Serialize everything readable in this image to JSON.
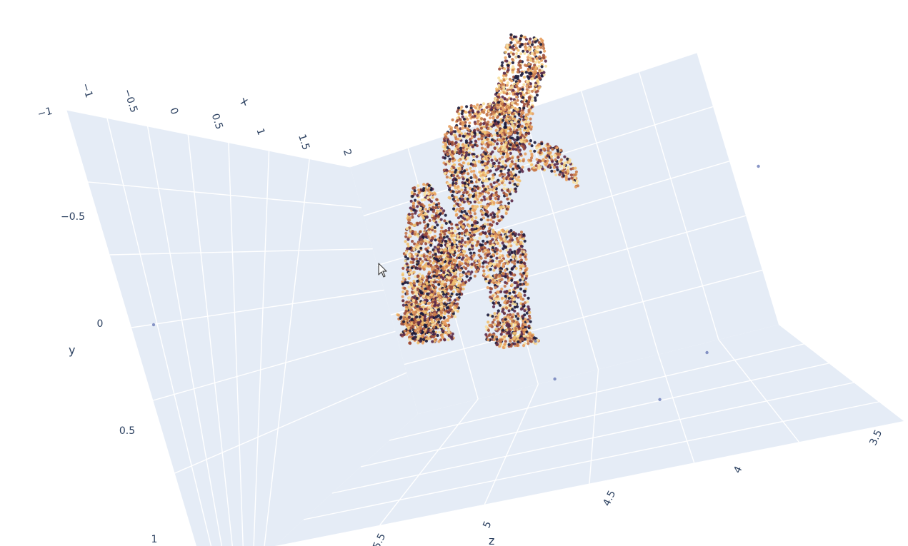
{
  "chart_data": {
    "type": "scatter3d",
    "title": "",
    "scene": {
      "bgcolor": "#e5ecf6",
      "gridcolor": "#ffffff",
      "tick_color": "#2a3f5f",
      "grid": true
    },
    "axes": {
      "x": {
        "title": "x",
        "ticks": [
          "−1",
          "−0.5",
          "0",
          "0.5",
          "1",
          "1.5",
          "2"
        ],
        "range": [
          -1,
          2
        ]
      },
      "y": {
        "title": "y",
        "ticks": [
          "−1",
          "−0.5",
          "0",
          "0.5",
          "1"
        ],
        "range": [
          -1,
          1
        ]
      },
      "z": {
        "title": "z",
        "ticks": [
          "3.5",
          "4",
          "4.5",
          "5",
          "5.5"
        ],
        "range": [
          3.5,
          5.5
        ]
      }
    },
    "series": [
      {
        "marker_colorscale": [
          "#1a1a3a",
          "#5a2a4a",
          "#9a4a3a",
          "#c87a4a",
          "#e8a060",
          "#f0c070",
          "#f8e0a0"
        ],
        "outlier_color": "#6a7ab8",
        "outliers": [
          {
            "x": -0.62,
            "y": 0.0,
            "z": 5.2
          },
          {
            "x": 2.05,
            "y": -0.05,
            "z": 4.3
          },
          {
            "x": 2.3,
            "y": 0.2,
            "z": 4.6
          },
          {
            "x": 3.05,
            "y": 0.28,
            "z": 4.4
          },
          {
            "x": 3.25,
            "y": -0.05,
            "z": 3.9
          },
          {
            "x": 3.55,
            "y": -1.1,
            "z": 3.6
          }
        ]
      }
    ]
  }
}
